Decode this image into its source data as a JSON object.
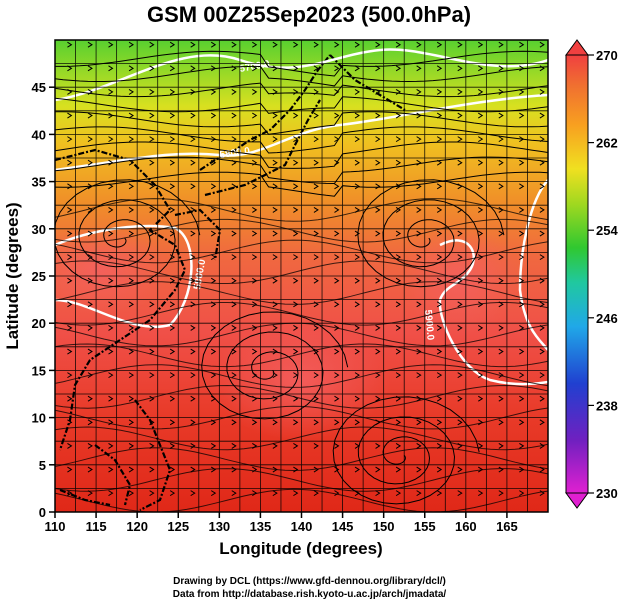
{
  "title": "GSM 00Z25Sep2023 (500.0hPa)",
  "xlabel": "Longitude (degrees)",
  "ylabel": "Latitude  (degrees)",
  "credits": [
    "Drawing by DCL (https://www.gfd-dennou.org/library/dcl/)",
    "Data from http://database.rish.kyoto-u.ac.jp/arch/jmadata/"
  ],
  "chart_data": {
    "type": "heatmap",
    "title": "GSM 00Z25Sep2023 (500.0hPa)",
    "xlabel": "Longitude (degrees)",
    "ylabel": "Latitude  (degrees)",
    "xlim": [
      110,
      170
    ],
    "ylim": [
      0,
      50
    ],
    "xticks": [
      110,
      115,
      120,
      125,
      130,
      135,
      140,
      145,
      150,
      155,
      160,
      165
    ],
    "yticks": [
      0,
      5,
      10,
      15,
      20,
      25,
      30,
      35,
      40,
      45
    ],
    "grid": true,
    "colorbar": {
      "min": 230,
      "max": 270,
      "ticks": [
        230,
        238,
        246,
        254,
        262,
        270
      ],
      "colors": [
        "#e020d0",
        "#5030c8",
        "#2060e0",
        "#20b8e0",
        "#20c8a0",
        "#30c830",
        "#a0d820",
        "#f0e020",
        "#f8a020",
        "#f07030",
        "#f04040"
      ]
    },
    "contours": [
      {
        "label": "5700.0",
        "lon": 134,
        "lat": 47.5
      },
      {
        "label": "5800.0",
        "lon": 140,
        "lat": 40.5
      },
      {
        "label": "5900.0",
        "lon": 124,
        "lat": 27
      },
      {
        "label": "5900.0",
        "lon": 152,
        "lat": 25.5
      }
    ],
    "vortices": [
      {
        "lon": 118,
        "lat": 29
      },
      {
        "lon": 155,
        "lat": 29
      },
      {
        "lon": 136,
        "lat": 15
      },
      {
        "lon": 152,
        "lat": 6
      }
    ]
  }
}
